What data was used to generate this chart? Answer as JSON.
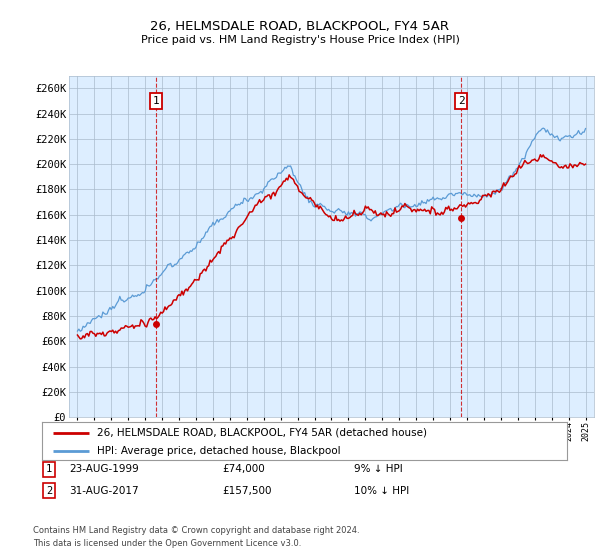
{
  "title": "26, HELMSDALE ROAD, BLACKPOOL, FY4 5AR",
  "subtitle": "Price paid vs. HM Land Registry's House Price Index (HPI)",
  "legend_line1": "26, HELMSDALE ROAD, BLACKPOOL, FY4 5AR (detached house)",
  "legend_line2": "HPI: Average price, detached house, Blackpool",
  "transaction1_date": "23-AUG-1999",
  "transaction1_price": "£74,000",
  "transaction1_hpi": "9% ↓ HPI",
  "transaction2_date": "31-AUG-2017",
  "transaction2_price": "£157,500",
  "transaction2_hpi": "10% ↓ HPI",
  "footnote1": "Contains HM Land Registry data © Crown copyright and database right 2024.",
  "footnote2": "This data is licensed under the Open Government Licence v3.0.",
  "hpi_color": "#5b9bd5",
  "price_color": "#cc0000",
  "vline_color": "#cc0000",
  "chart_bg": "#ddeeff",
  "background_color": "#ffffff",
  "grid_color": "#aabbcc",
  "ylim": [
    0,
    270000
  ],
  "yticks": [
    0,
    20000,
    40000,
    60000,
    80000,
    100000,
    120000,
    140000,
    160000,
    180000,
    200000,
    220000,
    240000,
    260000
  ],
  "sale1_year": 1999.65,
  "sale1_price": 74000,
  "sale2_year": 2017.66,
  "sale2_price": 157500
}
